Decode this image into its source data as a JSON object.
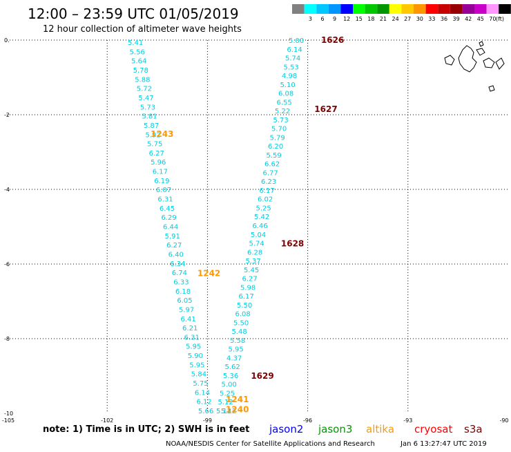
{
  "header": {
    "title": "12:00 – 23:59 UTC 01/05/2019",
    "subtitle": "12 hour collection of altimeter wave heights"
  },
  "legend": {
    "unit": "(ft)",
    "bins": [
      {
        "label": "",
        "color": "#808080"
      },
      {
        "label": "3",
        "color": "#00ffff"
      },
      {
        "label": "6",
        "color": "#00c8ff"
      },
      {
        "label": "9",
        "color": "#0096ff"
      },
      {
        "label": "12",
        "color": "#0000ff"
      },
      {
        "label": "15",
        "color": "#00ff00"
      },
      {
        "label": "18",
        "color": "#00c800"
      },
      {
        "label": "21",
        "color": "#009600"
      },
      {
        "label": "24",
        "color": "#ffff00"
      },
      {
        "label": "27",
        "color": "#ffc800"
      },
      {
        "label": "30",
        "color": "#ff9600"
      },
      {
        "label": "33",
        "color": "#ff0000"
      },
      {
        "label": "36",
        "color": "#c80000"
      },
      {
        "label": "39",
        "color": "#960000"
      },
      {
        "label": "42",
        "color": "#960096"
      },
      {
        "label": "45",
        "color": "#c800c8"
      },
      {
        "label": "70",
        "color": "#ff96ff"
      },
      {
        "label": "",
        "color": "#000000"
      }
    ]
  },
  "map": {
    "lon_ticks": [
      -105,
      -102,
      -99,
      -96,
      -93,
      -90
    ],
    "lat_ticks": [
      0,
      -2,
      -4,
      -6,
      -8,
      -10
    ],
    "lon_range": [
      -105,
      -90
    ],
    "lat_range": [
      -10,
      0
    ]
  },
  "tracks": {
    "west": {
      "values": [
        "5.41",
        "5.56",
        "5.64",
        "5.78",
        "5.88",
        "5.72",
        "5.47",
        "5.73",
        "5.81",
        "5.87",
        "5.92",
        "5.75",
        "6.27",
        "5.96",
        "6.17",
        "6.19",
        "6.07",
        "6.31",
        "6.45",
        "6.29",
        "6.44",
        "5.91",
        "6.27",
        "6.40",
        "6.34",
        "6.74",
        "6.33",
        "6.18",
        "6.05",
        "5.97",
        "6.41",
        "6.21",
        "6.31",
        "5.95",
        "5.90",
        "5.95",
        "5.84",
        "5.75",
        "6.14",
        "6.12",
        "5.66"
      ]
    },
    "east": {
      "values": [
        "5.00",
        "6.14",
        "5.74",
        "5.53",
        "4.98",
        "5.10",
        "6.08",
        "6.55",
        "5.22",
        "5.73",
        "5.70",
        "5.79",
        "6.20",
        "5.59",
        "6.62",
        "6.77",
        "6.23",
        "6.17",
        "6.02",
        "5.25",
        "5.42",
        "6.46",
        "5.04",
        "5.74",
        "6.28",
        "5.37",
        "5.45",
        "6.27",
        "5.98",
        "6.17",
        "5.50",
        "6.08",
        "5.50",
        "5.48",
        "5.58",
        "5.95",
        "4.37",
        "5.62",
        "5.36",
        "5.00",
        "5.25",
        "5.12",
        "5.12"
      ]
    },
    "bottom_extra": "5.12"
  },
  "pass_labels": [
    {
      "text": "1626",
      "lon": -95.6,
      "lat": 0.0,
      "color": "#800000"
    },
    {
      "text": "1627",
      "lon": -95.8,
      "lat": -1.85,
      "color": "#800000"
    },
    {
      "text": "1243",
      "lon": -100.7,
      "lat": -2.52,
      "color": "#ff9900"
    },
    {
      "text": "1628",
      "lon": -96.8,
      "lat": -5.45,
      "color": "#800000"
    },
    {
      "text": "1242",
      "lon": -99.3,
      "lat": -6.25,
      "color": "#ff9900"
    },
    {
      "text": "1629",
      "lon": -97.7,
      "lat": -9.0,
      "color": "#800000"
    },
    {
      "text": "1241",
      "lon": -98.45,
      "lat": -9.63,
      "color": "#ff9900"
    },
    {
      "text": "1240",
      "lon": -98.45,
      "lat": -9.9,
      "color": "#ff9900"
    }
  ],
  "footer": {
    "note": "note:  1) Time is in UTC;  2) SWH is in feet",
    "satellites": [
      {
        "name": "jason2",
        "color": "#0000ff"
      },
      {
        "name": "jason3",
        "color": "#009900"
      },
      {
        "name": "altika",
        "color": "#ff9900"
      },
      {
        "name": "cryosat",
        "color": "#ff0000"
      },
      {
        "name": "s3a",
        "color": "#800000"
      }
    ],
    "credit": "NOAA/NESDIS Center for Satellite Applications and Research",
    "timestamp": "Jan  6 13:27:47 UTC 2019"
  }
}
